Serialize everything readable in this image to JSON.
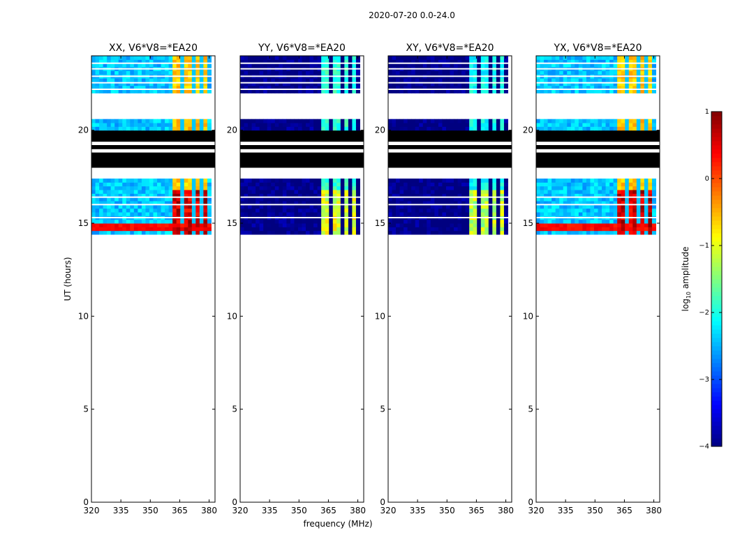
{
  "suptitle": "2020-07-20 0.0-24.0",
  "chart_data": {
    "type": "heatmap",
    "xlabel": "frequency (MHz)",
    "ylabel": "UT (hours)",
    "xlim": [
      320,
      383
    ],
    "ylim": [
      0,
      24
    ],
    "xticks": [
      320,
      335,
      350,
      365,
      380
    ],
    "yticks": [
      0,
      5,
      10,
      15,
      20
    ],
    "panels": [
      {
        "title": "XX, V6*V8=*EA20",
        "stokes": "XX",
        "base_level": -2.4,
        "band_level": -0.6,
        "bright_level": 0.6
      },
      {
        "title": "YY, V6*V8=*EA20",
        "stokes": "YY",
        "base_level": -4.0,
        "band_level": -1.9,
        "bright_level": -1.0
      },
      {
        "title": "XY, V6*V8=*EA20",
        "stokes": "XY",
        "base_level": -4.0,
        "band_level": -2.1,
        "bright_level": -1.2
      },
      {
        "title": "YX, V6*V8=*EA20",
        "stokes": "YX",
        "base_level": -2.4,
        "band_level": -0.6,
        "bright_level": 0.6
      }
    ],
    "data_time_range_hours": [
      14.4,
      24
    ],
    "bright_band_mhz": [
      361,
      380
    ],
    "colorbar": {
      "label_prefix": "log",
      "label_sub": "10",
      "label_suffix": " amplitude",
      "min": -4,
      "max": 1,
      "ticks": [
        -4,
        -3,
        -2,
        -1,
        0,
        1
      ],
      "colormap": "jet"
    }
  }
}
